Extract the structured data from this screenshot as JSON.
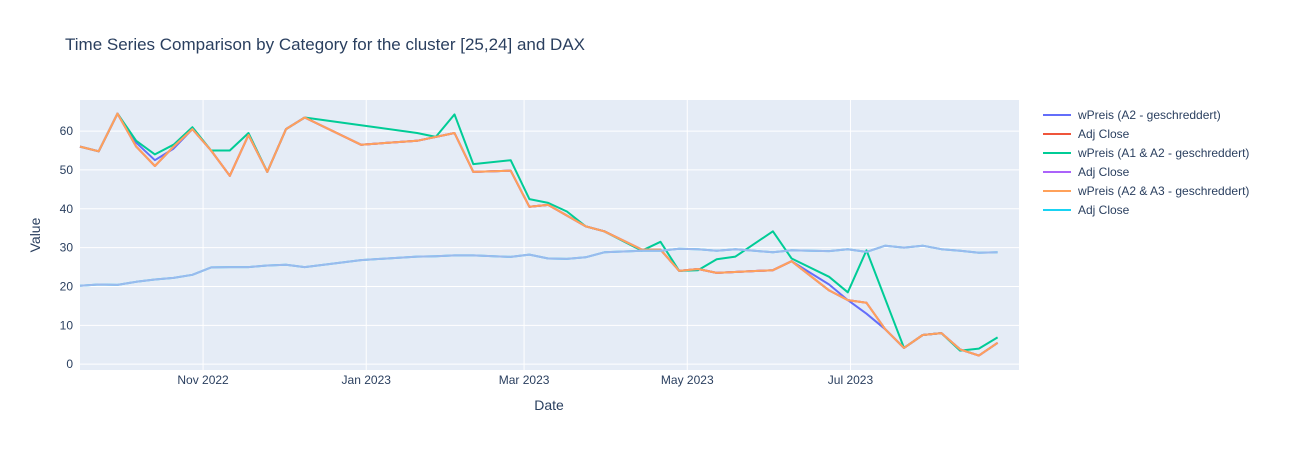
{
  "chart_data": {
    "type": "line",
    "title": "Time Series Comparison by Category for the cluster [25,24] and DAX",
    "xlabel": "Date",
    "ylabel": "Value",
    "xlim": [
      "2022-09-16",
      "2023-09-02"
    ],
    "ylim": [
      -1.5,
      68
    ],
    "x_ticks": [
      {
        "date": "2022-11-01",
        "label": "Nov 2022"
      },
      {
        "date": "2023-01-01",
        "label": "Jan 2023"
      },
      {
        "date": "2023-03-01",
        "label": "Mar 2023"
      },
      {
        "date": "2023-05-01",
        "label": "May 2023"
      },
      {
        "date": "2023-07-01",
        "label": "Jul 2023"
      }
    ],
    "y_ticks": [
      0,
      10,
      20,
      30,
      40,
      50,
      60
    ],
    "grid": true,
    "legend": "right",
    "x": [
      "2022-09-16",
      "2022-09-23",
      "2022-09-30",
      "2022-10-07",
      "2022-10-14",
      "2022-10-21",
      "2022-10-28",
      "2022-11-04",
      "2022-11-11",
      "2022-11-18",
      "2022-11-25",
      "2022-12-02",
      "2022-12-09",
      "2022-12-16",
      "2022-12-23",
      "2022-12-30",
      "2023-01-06",
      "2023-01-13",
      "2023-01-20",
      "2023-01-27",
      "2023-02-03",
      "2023-02-10",
      "2023-02-17",
      "2023-02-24",
      "2023-03-03",
      "2023-03-10",
      "2023-03-17",
      "2023-03-24",
      "2023-03-31",
      "2023-04-07",
      "2023-04-14",
      "2023-04-21",
      "2023-04-28",
      "2023-05-05",
      "2023-05-12",
      "2023-05-19",
      "2023-05-26",
      "2023-06-02",
      "2023-06-09",
      "2023-06-16",
      "2023-06-23",
      "2023-06-30",
      "2023-07-07",
      "2023-07-14",
      "2023-07-21",
      "2023-07-28",
      "2023-08-04",
      "2023-08-11",
      "2023-08-18",
      "2023-08-25",
      "2023-09-01"
    ],
    "series": [
      {
        "name": "wPreis (A2 -  geschreddert)",
        "color": "#636efa",
        "values": [
          56,
          54.8,
          64.5,
          57,
          52.5,
          55.5,
          60.5,
          55,
          48.5,
          59,
          49.5,
          60.5,
          63.5,
          null,
          null,
          56.5,
          null,
          null,
          57.5,
          null,
          59.5,
          49.5,
          null,
          49.8,
          40.5,
          41,
          null,
          35.5,
          34.2,
          null,
          29.5,
          29.5,
          24,
          24.5,
          23.5,
          null,
          null,
          24.2,
          26.5,
          null,
          20.5,
          16.5,
          13,
          9,
          4.2,
          7.5,
          8,
          3.8,
          2.2,
          5.5,
          null
        ]
      },
      {
        "name": "Adj Close",
        "color": "#ef553b",
        "values": [
          56,
          54.8,
          64.5,
          56,
          51,
          56,
          60.5,
          55,
          48.5,
          59,
          49.5,
          60.5,
          63.5,
          null,
          null,
          56.5,
          null,
          null,
          57.5,
          null,
          59.5,
          49.5,
          null,
          49.8,
          40.5,
          41,
          null,
          35.5,
          34.2,
          null,
          29.5,
          29.5,
          24,
          24.5,
          23.5,
          null,
          null,
          24.2,
          26.5,
          null,
          19,
          16.5,
          15.8,
          9,
          4.2,
          7.5,
          8,
          3.8,
          2.2,
          5.5,
          null
        ]
      },
      {
        "name": "wPreis (A1 & A2 -  geschreddert)",
        "color": "#00cc96",
        "values": [
          56,
          54.8,
          64.5,
          57.5,
          54,
          56.5,
          61,
          55,
          55,
          59.5,
          49.5,
          60.5,
          63.5,
          null,
          null,
          null,
          null,
          null,
          59.5,
          58.5,
          64.3,
          51.5,
          null,
          52.5,
          42.5,
          41.5,
          39.3,
          35.5,
          34.2,
          null,
          29.2,
          31.5,
          24,
          24.2,
          27,
          27.7,
          null,
          34.2,
          27.2,
          null,
          22.5,
          18.5,
          29.3,
          null,
          4.2,
          7.5,
          8,
          3.5,
          4,
          6.9,
          null
        ]
      },
      {
        "name": "Adj Close",
        "color": "#ab63fa",
        "values": [
          56,
          54.8,
          64.5,
          56,
          51,
          56,
          60.5,
          55,
          48.5,
          59,
          49.5,
          60.5,
          63.5,
          null,
          null,
          56.5,
          null,
          null,
          57.5,
          null,
          59.5,
          49.5,
          null,
          49.8,
          40.5,
          41,
          null,
          35.5,
          34.2,
          null,
          29.5,
          29.5,
          24,
          24.5,
          23.5,
          null,
          null,
          24.2,
          26.5,
          null,
          19,
          16.5,
          15.8,
          9,
          4.2,
          7.5,
          8,
          3.8,
          2.2,
          5.5,
          null
        ]
      },
      {
        "name": "wPreis (A2 & A3 -  geschreddert)",
        "color": "#ffa15a",
        "values": [
          56,
          54.8,
          64.5,
          56,
          51,
          56,
          60.5,
          55,
          48.5,
          59,
          49.5,
          60.5,
          63.5,
          null,
          null,
          56.5,
          null,
          null,
          57.5,
          null,
          59.5,
          49.5,
          null,
          49.8,
          40.5,
          41,
          null,
          35.5,
          34.2,
          null,
          29.5,
          29.5,
          24,
          24.5,
          23.5,
          null,
          null,
          24.2,
          26.5,
          null,
          19,
          16.5,
          15.8,
          9,
          4.2,
          7.5,
          8,
          3.8,
          2.2,
          5.5,
          null
        ]
      },
      {
        "name": "Adj Close",
        "color": "#19d3f3",
        "values": [
          20.2,
          20.5,
          20.4,
          21.2,
          21.8,
          22.2,
          23,
          24.9,
          25,
          25,
          25.4,
          25.6,
          25,
          null,
          null,
          26.8,
          null,
          null,
          27.7,
          27.8,
          28,
          28,
          null,
          27.6,
          28.2,
          27.2,
          27.1,
          27.5,
          28.8,
          null,
          29.2,
          29.2,
          29.7,
          29.6,
          29.2,
          29.6,
          29.2,
          28.8,
          29.3,
          29.2,
          29.1,
          29.6,
          28.9,
          30.5,
          30,
          30.5,
          29.6,
          29.2,
          28.7,
          28.8,
          null
        ]
      },
      {
        "name": "",
        "color": "#9bbaed",
        "values": [
          20.2,
          20.5,
          20.4,
          21.2,
          21.8,
          22.2,
          23,
          24.9,
          25,
          25,
          25.4,
          25.6,
          25,
          null,
          null,
          26.8,
          null,
          null,
          27.7,
          27.8,
          28,
          28,
          null,
          27.6,
          28.2,
          27.2,
          27.1,
          27.5,
          28.8,
          null,
          29.2,
          29.2,
          29.7,
          29.6,
          29.2,
          29.6,
          29.2,
          28.8,
          29.3,
          29.2,
          29.1,
          29.6,
          28.9,
          30.5,
          30,
          30.5,
          29.6,
          29.2,
          28.7,
          28.8,
          null
        ]
      }
    ]
  }
}
